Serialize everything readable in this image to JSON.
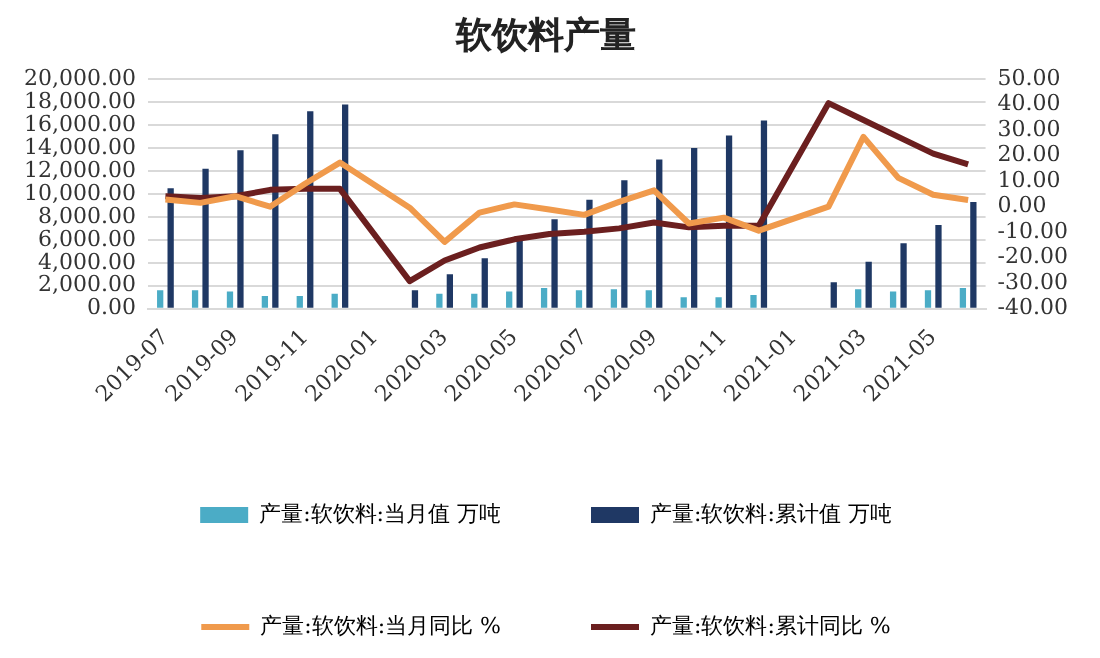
{
  "chart_data": {
    "type": "bar",
    "title": "软饮料产量",
    "categories": [
      "2019-07",
      null,
      "2019-09",
      null,
      "2019-11",
      null,
      "2020-01",
      null,
      "2020-03",
      null,
      "2020-05",
      null,
      "2020-07",
      null,
      "2020-09",
      null,
      "2020-11",
      null,
      "2021-01",
      null,
      "2021-03",
      null,
      "2021-05",
      null
    ],
    "series": [
      {
        "name": "产量:软饮料:当月值 万吨",
        "color": "#4bacc6",
        "values": [
          1600,
          1600,
          1500,
          1100,
          1100,
          1300,
          null,
          null,
          1300,
          1300,
          1500,
          1800,
          1600,
          1700,
          1600,
          1000,
          1000,
          1200,
          null,
          null,
          1700,
          1500,
          1600,
          1800
        ]
      },
      {
        "name": "产量:软饮料:累计值 万吨",
        "color": "#1f3864",
        "values": [
          10500,
          12200,
          13800,
          15200,
          17200,
          17800,
          null,
          1600,
          3000,
          4400,
          6000,
          7800,
          9500,
          11200,
          13000,
          14000,
          15100,
          16400,
          null,
          2300,
          4100,
          5700,
          7300,
          9300
        ]
      },
      {
        "name": "产量:软饮料:当月同比 %",
        "type": "line",
        "axis": "y2",
        "color": "#f09a4c",
        "values": [
          2.8,
          1.5,
          4.1,
          0,
          9.0,
          17.3,
          null,
          -0.4,
          -13.8,
          -2.3,
          0.9,
          -1.1,
          -3.2,
          1.9,
          6.4,
          -6.6,
          -4.3,
          -9.4,
          null,
          0,
          27.4,
          11.3,
          4.7,
          2.6
        ]
      },
      {
        "name": "产量:软饮料:累计同比 %",
        "type": "line",
        "axis": "y2",
        "color": "#6b1f1f",
        "values": [
          4.1,
          3.4,
          4.1,
          6.6,
          7.0,
          7.0,
          null,
          -29.2,
          -21.1,
          -16,
          -12.8,
          -10.7,
          -9.8,
          -8.5,
          -6.2,
          -8.1,
          -7.5,
          -7.5,
          null,
          40.6,
          34,
          27.4,
          20.8,
          16.6
        ]
      }
    ],
    "ylim": [
      0,
      20000
    ],
    "yticks": [
      {
        "value": 0,
        "label": "0.00"
      },
      {
        "value": 2000,
        "label": "2,000.00"
      },
      {
        "value": 4000,
        "label": "4,000.00"
      },
      {
        "value": 6000,
        "label": "6,000.00"
      },
      {
        "value": 8000,
        "label": "8,000.00"
      },
      {
        "value": 10000,
        "label": "10,000.00"
      },
      {
        "value": 12000,
        "label": "12,000.00"
      },
      {
        "value": 14000,
        "label": "14,000.00"
      },
      {
        "value": 16000,
        "label": "16,000.00"
      },
      {
        "value": 18000,
        "label": "18,000.00"
      },
      {
        "value": 20000,
        "label": "20,000.00"
      }
    ],
    "y2lim": [
      -40,
      50
    ],
    "y2ticks": [
      {
        "value": -40,
        "label": "-40.00"
      },
      {
        "value": -30,
        "label": "-30.00"
      },
      {
        "value": -20,
        "label": "-20.00"
      },
      {
        "value": -10,
        "label": "-10.00"
      },
      {
        "value": 0,
        "label": "0.00"
      },
      {
        "value": 10,
        "label": "10.00"
      },
      {
        "value": 20,
        "label": "20.00"
      },
      {
        "value": 30,
        "label": "30.00"
      },
      {
        "value": 40,
        "label": "40.00"
      },
      {
        "value": 50,
        "label": "50.00"
      }
    ],
    "grid": "y",
    "legend": "bottom",
    "marker": "none",
    "line_style": "solid"
  }
}
